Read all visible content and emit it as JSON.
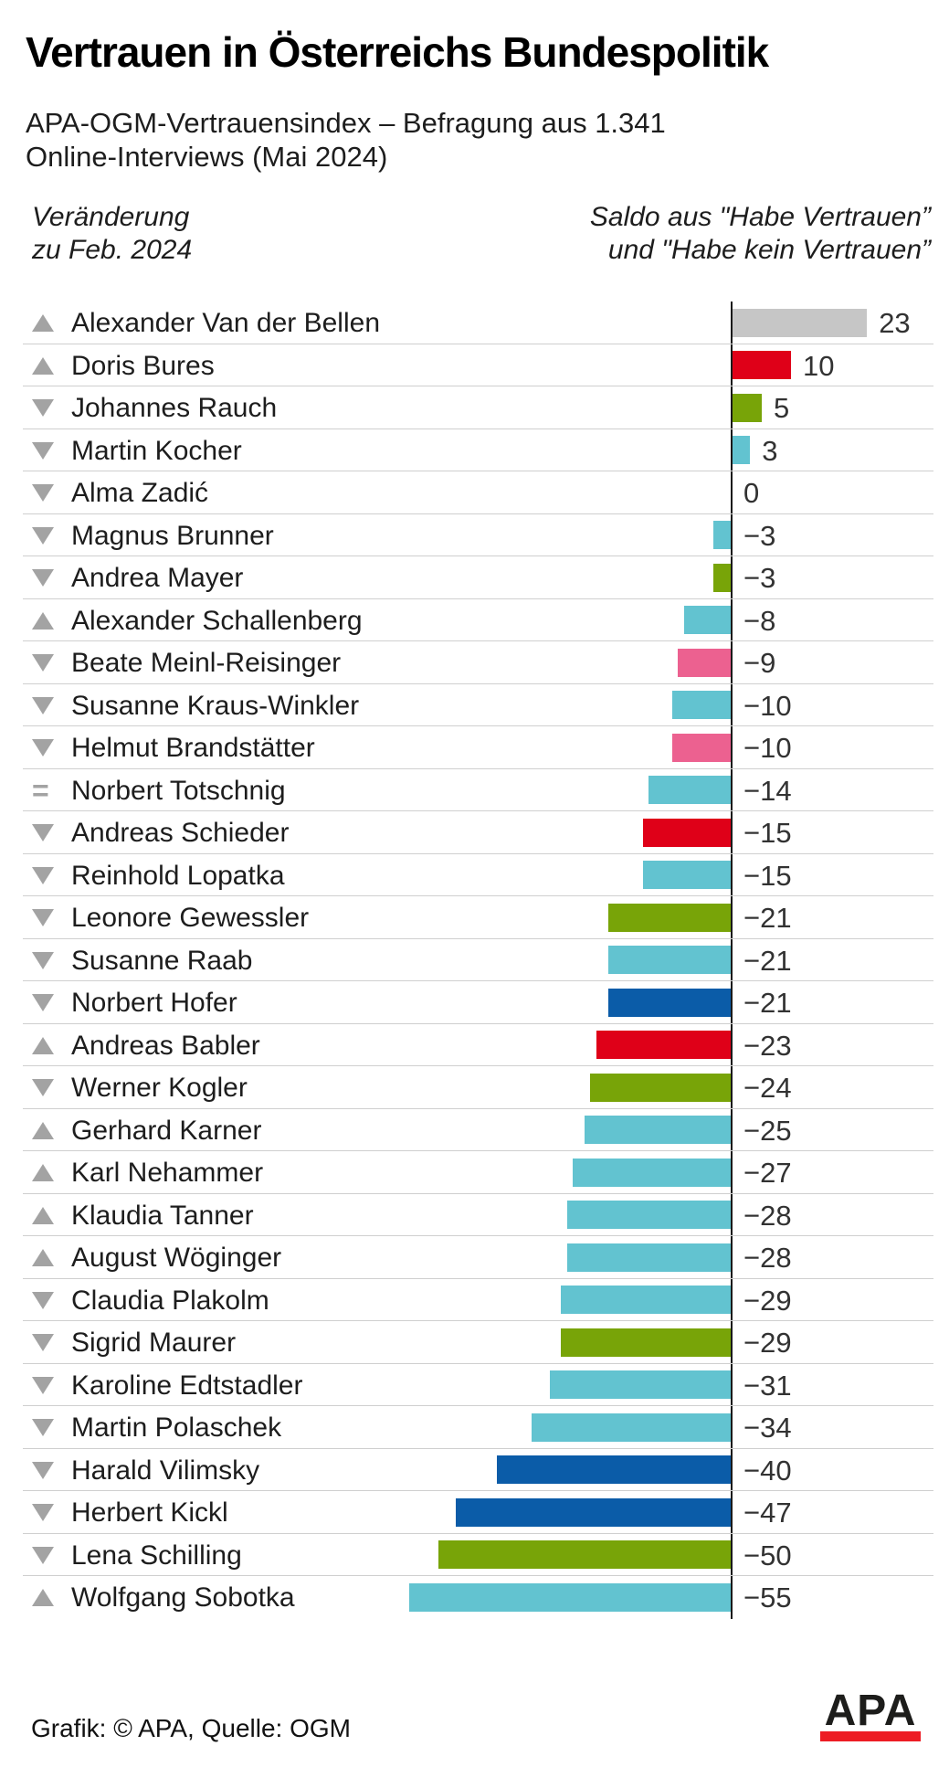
{
  "header": {
    "title": "Vertrauen in Österreichs Bundespolitik",
    "subtitle_line1": "APA-OGM-Vertrauensindex – Befragung aus 1.341",
    "subtitle_line2": "Online-Interviews (Mai 2024)"
  },
  "column_headers": {
    "left_line1": "Veränderung",
    "left_line2": "zu Feb. 2024",
    "right_line1": "Saldo aus \"Habe Vertrauen”",
    "right_line2": "und \"Habe kein Vertrauen”"
  },
  "footer": {
    "credit": "Grafik: © APA, Quelle: OGM",
    "logo_text": "APA"
  },
  "colors": {
    "gray": "#c6c6c6",
    "red": "#df0018",
    "green": "#78a408",
    "cyan": "#62c3d0",
    "pink": "#ec6190",
    "blue": "#0b5ca8",
    "arrow_gray": "#a3a3a3",
    "axis": "#1a1a1a",
    "separator": "#cfcfcf",
    "logo_red": "#ed1c24"
  },
  "chart_data": {
    "type": "bar",
    "orientation": "horizontal",
    "title": "Vertrauen in Österreichs Bundespolitik",
    "subtitle": "APA-OGM-Vertrauensindex – Befragung aus 1.341 Online-Interviews (Mai 2024)",
    "value_axis_label": "Saldo aus \"Habe Vertrauen” und \"Habe kein Vertrauen”",
    "change_column_label": "Veränderung zu Feb. 2024",
    "value_range": [
      -55,
      23
    ],
    "baseline": 0,
    "rows": [
      {
        "name": "Alexander Van der Bellen",
        "value": 23,
        "label": "23",
        "change": "up",
        "color": "gray"
      },
      {
        "name": "Doris Bures",
        "value": 10,
        "label": "10",
        "change": "up",
        "color": "red"
      },
      {
        "name": "Johannes Rauch",
        "value": 5,
        "label": "5",
        "change": "down",
        "color": "green"
      },
      {
        "name": "Martin Kocher",
        "value": 3,
        "label": "3",
        "change": "down",
        "color": "cyan"
      },
      {
        "name": "Alma Zadić",
        "value": 0,
        "label": "0",
        "change": "down",
        "color": "none"
      },
      {
        "name": "Magnus Brunner",
        "value": -3,
        "label": "−3",
        "change": "down",
        "color": "cyan"
      },
      {
        "name": "Andrea Mayer",
        "value": -3,
        "label": "−3",
        "change": "down",
        "color": "green"
      },
      {
        "name": "Alexander Schallenberg",
        "value": -8,
        "label": "−8",
        "change": "up",
        "color": "cyan"
      },
      {
        "name": "Beate Meinl-Reisinger",
        "value": -9,
        "label": "−9",
        "change": "down",
        "color": "pink"
      },
      {
        "name": "Susanne Kraus-Winkler",
        "value": -10,
        "label": "−10",
        "change": "down",
        "color": "cyan"
      },
      {
        "name": "Helmut Brandstätter",
        "value": -10,
        "label": "−10",
        "change": "down",
        "color": "pink"
      },
      {
        "name": "Norbert Totschnig",
        "value": -14,
        "label": "−14",
        "change": "equal",
        "color": "cyan"
      },
      {
        "name": "Andreas Schieder",
        "value": -15,
        "label": "−15",
        "change": "down",
        "color": "red"
      },
      {
        "name": "Reinhold Lopatka",
        "value": -15,
        "label": "−15",
        "change": "down",
        "color": "cyan"
      },
      {
        "name": "Leonore Gewessler",
        "value": -21,
        "label": "−21",
        "change": "down",
        "color": "green"
      },
      {
        "name": "Susanne Raab",
        "value": -21,
        "label": "−21",
        "change": "down",
        "color": "cyan"
      },
      {
        "name": "Norbert Hofer",
        "value": -21,
        "label": "−21",
        "change": "down",
        "color": "blue"
      },
      {
        "name": "Andreas Babler",
        "value": -23,
        "label": "−23",
        "change": "up",
        "color": "red"
      },
      {
        "name": "Werner Kogler",
        "value": -24,
        "label": "−24",
        "change": "down",
        "color": "green"
      },
      {
        "name": "Gerhard Karner",
        "value": -25,
        "label": "−25",
        "change": "up",
        "color": "cyan"
      },
      {
        "name": "Karl Nehammer",
        "value": -27,
        "label": "−27",
        "change": "up",
        "color": "cyan"
      },
      {
        "name": "Klaudia Tanner",
        "value": -28,
        "label": "−28",
        "change": "up",
        "color": "cyan"
      },
      {
        "name": "August Wöginger",
        "value": -28,
        "label": "−28",
        "change": "up",
        "color": "cyan"
      },
      {
        "name": "Claudia Plakolm",
        "value": -29,
        "label": "−29",
        "change": "down",
        "color": "cyan"
      },
      {
        "name": "Sigrid Maurer",
        "value": -29,
        "label": "−29",
        "change": "down",
        "color": "green"
      },
      {
        "name": "Karoline Edtstadler",
        "value": -31,
        "label": "−31",
        "change": "down",
        "color": "cyan"
      },
      {
        "name": "Martin Polaschek",
        "value": -34,
        "label": "−34",
        "change": "down",
        "color": "cyan"
      },
      {
        "name": "Harald Vilimsky",
        "value": -40,
        "label": "−40",
        "change": "down",
        "color": "blue"
      },
      {
        "name": "Herbert Kickl",
        "value": -47,
        "label": "−47",
        "change": "down",
        "color": "blue"
      },
      {
        "name": "Lena Schilling",
        "value": -50,
        "label": "−50",
        "change": "down",
        "color": "green"
      },
      {
        "name": "Wolfgang Sobotka",
        "value": -55,
        "label": "−55",
        "change": "up",
        "color": "cyan"
      }
    ]
  }
}
